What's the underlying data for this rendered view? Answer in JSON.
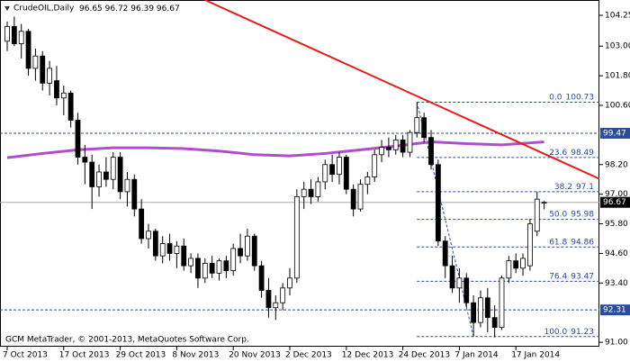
{
  "chart_data": {
    "type": "candlestick",
    "title": "CrudeOIL,Daily",
    "last_ohlc": [
      96.65,
      96.72,
      96.39,
      96.67
    ],
    "footer": "GCM MetaTrader, © 2001-2013, MetaQuotes Software Corp.",
    "categories": [
      "7 Oct 2013",
      null,
      null,
      null,
      null,
      null,
      null,
      null,
      "17 Oct 2013",
      null,
      null,
      null,
      null,
      null,
      null,
      null,
      "29 Oct 2013",
      null,
      null,
      null,
      null,
      null,
      null,
      null,
      "8 Nov 2013",
      null,
      null,
      null,
      null,
      null,
      null,
      null,
      "20 Nov 2013",
      null,
      null,
      null,
      null,
      null,
      null,
      null,
      "2 Dec 2013",
      null,
      null,
      null,
      null,
      null,
      null,
      null,
      "12 Dec 2013",
      null,
      null,
      null,
      null,
      null,
      null,
      null,
      "24 Dec 2013",
      null,
      null,
      null,
      null,
      null,
      null,
      null,
      "7 Jan 2014",
      null,
      null,
      null,
      null,
      null,
      null,
      null,
      "17 Jan 2014",
      null,
      null,
      null,
      null
    ],
    "open": [
      103.2,
      103.8,
      103.1,
      103.6,
      102.1,
      102.6,
      101.5,
      101.6,
      100.9,
      101.1,
      100.0,
      98.5,
      98.3,
      97.3,
      97.9,
      97.6,
      98.5,
      97.1,
      97.6,
      96.4,
      95.2,
      95.5,
      94.5,
      95.0,
      94.6,
      94.9,
      94.1,
      94.4,
      93.6,
      94.2,
      93.8,
      94.3,
      93.9,
      94.8,
      94.5,
      95.3,
      94.1,
      93.1,
      92.4,
      92.6,
      93.2,
      93.6,
      96.9,
      97.2,
      96.9,
      97.5,
      98.2,
      97.8,
      98.5,
      97.2,
      96.4,
      97.4,
      97.7,
      98.6,
      98.9,
      98.8,
      99.2,
      98.7,
      99.5,
      100.1,
      99.3,
      98.2,
      95.1,
      94.1,
      93.2,
      93.6,
      92.6,
      91.8,
      92.8,
      92.0,
      91.6,
      93.6,
      94.3,
      94.0,
      94.1,
      95.5,
      96.65
    ],
    "high": [
      104.0,
      104.2,
      103.9,
      103.7,
      102.9,
      102.8,
      102.4,
      102.2,
      101.4,
      101.2,
      100.3,
      99.0,
      98.6,
      98.2,
      98.5,
      98.7,
      98.7,
      97.9,
      97.8,
      96.8,
      95.8,
      95.6,
      95.3,
      95.4,
      95.1,
      95.2,
      94.6,
      94.6,
      94.4,
      94.5,
      94.4,
      94.5,
      95.0,
      95.4,
      95.6,
      95.4,
      94.3,
      93.6,
      92.9,
      93.4,
      94.0,
      97.2,
      97.5,
      97.6,
      97.7,
      98.4,
      98.6,
      98.7,
      98.6,
      97.4,
      97.6,
      97.9,
      98.8,
      99.2,
      99.3,
      99.4,
      99.4,
      99.6,
      100.73,
      100.3,
      99.6,
      98.4,
      95.3,
      94.5,
      94.0,
      93.8,
      92.9,
      93.1,
      93.2,
      92.5,
      93.7,
      94.5,
      94.6,
      94.6,
      96.0,
      97.1,
      96.72
    ],
    "low": [
      102.8,
      103.0,
      102.5,
      101.8,
      101.6,
      101.2,
      101.0,
      100.6,
      100.2,
      99.7,
      98.2,
      97.4,
      96.4,
      96.9,
      97.3,
      97.2,
      96.8,
      96.5,
      96.1,
      95.0,
      94.8,
      94.3,
      94.2,
      94.3,
      94.0,
      93.9,
      93.8,
      93.2,
      93.4,
      93.6,
      93.5,
      93.6,
      93.7,
      94.2,
      94.3,
      93.9,
      92.8,
      92.0,
      91.9,
      92.3,
      92.9,
      93.4,
      96.4,
      96.6,
      96.7,
      97.2,
      97.5,
      97.4,
      97.0,
      96.1,
      96.3,
      97.0,
      97.5,
      98.3,
      98.5,
      98.6,
      98.5,
      98.5,
      99.3,
      99.1,
      98.0,
      94.9,
      93.6,
      93.0,
      92.6,
      92.4,
      91.23,
      91.6,
      91.4,
      91.2,
      91.5,
      93.4,
      93.8,
      93.7,
      93.9,
      95.3,
      96.39
    ],
    "close": [
      103.8,
      103.1,
      103.6,
      102.1,
      102.6,
      101.5,
      102.1,
      100.9,
      101.1,
      100.0,
      98.5,
      98.3,
      97.3,
      97.9,
      97.6,
      98.5,
      97.1,
      97.6,
      96.4,
      95.2,
      95.5,
      94.5,
      95.0,
      94.6,
      94.9,
      94.1,
      94.4,
      93.6,
      94.2,
      93.8,
      94.3,
      93.9,
      94.8,
      94.5,
      95.3,
      94.1,
      93.1,
      92.4,
      92.6,
      93.2,
      93.6,
      96.9,
      97.2,
      96.9,
      97.5,
      98.2,
      97.8,
      98.5,
      97.2,
      96.4,
      97.4,
      97.7,
      98.6,
      98.9,
      98.8,
      99.2,
      98.7,
      99.5,
      100.1,
      99.3,
      98.2,
      95.1,
      94.1,
      93.2,
      93.6,
      92.6,
      91.8,
      92.8,
      92.0,
      91.6,
      93.6,
      94.3,
      94.0,
      94.4,
      95.8,
      96.8,
      96.67
    ],
    "moving_average": {
      "color": "#b04ccf",
      "x": [
        0,
        5,
        10,
        15,
        20,
        25,
        30,
        35,
        40,
        45,
        50,
        55,
        60,
        65,
        70,
        76
      ],
      "values": [
        98.48,
        98.65,
        98.8,
        98.88,
        98.88,
        98.85,
        98.75,
        98.6,
        98.55,
        98.65,
        98.8,
        98.95,
        99.12,
        99.05,
        99.0,
        99.12
      ]
    },
    "trendline": {
      "color": "#e0201c",
      "x": [
        28,
        84
      ],
      "values": [
        104.87,
        97.6
      ]
    },
    "fibonacci": {
      "color": "#2a4d9c",
      "from_x": 58,
      "to_x": 66,
      "levels": [
        {
          "ratio": "0.0",
          "price": 100.73
        },
        {
          "ratio": "23.6",
          "price": 98.49
        },
        {
          "ratio": "38.2",
          "price": 97.1
        },
        {
          "ratio": "50.0",
          "price": 95.98
        },
        {
          "ratio": "61.8",
          "price": 94.86
        },
        {
          "ratio": "76.4",
          "price": 93.47
        },
        {
          "ratio": "100.0",
          "price": 91.23
        }
      ]
    },
    "horizontal_levels": [
      99.47,
      92.31
    ],
    "current_price": 96.67,
    "ylim": [
      90.82,
      104.87
    ],
    "yticks": [
      104.25,
      {
        "value": 103,
        "label": "103.00"
      },
      {
        "value": 101.8,
        "label": "101.80"
      },
      {
        "value": 100.6,
        "label": "100.60"
      },
      {
        "value": 98.2,
        "label": "98.20"
      },
      {
        "value": 97,
        "label": "97.00"
      },
      {
        "value": 95.8,
        "label": "95.80"
      },
      {
        "value": 94.6,
        "label": "94.60"
      },
      {
        "value": 93.4,
        "label": "93.40"
      },
      {
        "value": 91,
        "label": "91.00"
      }
    ]
  }
}
